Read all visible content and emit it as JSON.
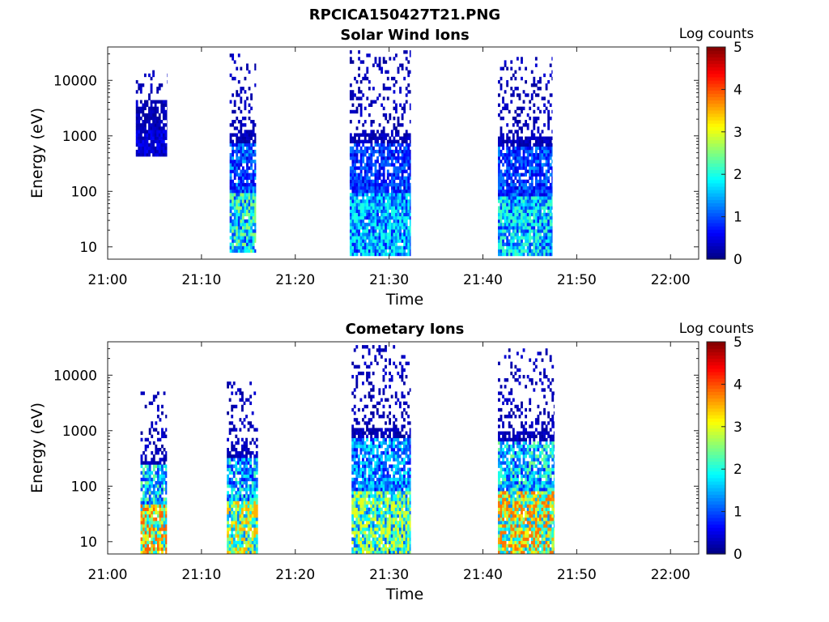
{
  "figure_title": "RPCICA150427T21.PNG",
  "colorbar": {
    "label": "Log counts",
    "ticks": [
      "0",
      "1",
      "2",
      "3",
      "4",
      "5"
    ],
    "range": [
      0,
      5
    ],
    "colormap": "jet"
  },
  "chart_data": [
    {
      "type": "heatmap",
      "title": "Solar Wind Ions",
      "xlabel": "Time",
      "ylabel": "Energy (eV)",
      "x_ticks": [
        "21:00",
        "21:10",
        "21:20",
        "21:30",
        "21:40",
        "21:50",
        "22:00"
      ],
      "xlim_minutes": [
        0,
        63
      ],
      "y_ticks": [
        "10",
        "100",
        "1000",
        "10000"
      ],
      "ylim_eV": [
        6,
        40000
      ],
      "y_scale": "log",
      "bursts": [
        {
          "start_min": 3.0,
          "end_min": 6.3,
          "emin_eV": 400,
          "emax_eV": 20000,
          "low_max": 0.55,
          "peak": 0.8,
          "fill": 0.3
        },
        {
          "start_min": 13.0,
          "end_min": 15.8,
          "emin_eV": 8,
          "emax_eV": 30000,
          "low_max": 2.3,
          "peak": 2.6,
          "fill": 0.6
        },
        {
          "start_min": 25.8,
          "end_min": 32.3,
          "emin_eV": 7,
          "emax_eV": 35000,
          "low_max": 1.9,
          "peak": 2.0,
          "fill": 0.55
        },
        {
          "start_min": 41.6,
          "end_min": 47.4,
          "emin_eV": 7,
          "emax_eV": 25000,
          "low_max": 2.1,
          "peak": 2.2,
          "fill": 0.55
        }
      ]
    },
    {
      "type": "heatmap",
      "title": "Cometary Ions",
      "xlabel": "Time",
      "ylabel": "Energy (eV)",
      "x_ticks": [
        "21:00",
        "21:10",
        "21:20",
        "21:30",
        "21:40",
        "21:50",
        "22:00"
      ],
      "xlim_minutes": [
        0,
        63
      ],
      "y_ticks": [
        "10",
        "100",
        "1000",
        "10000"
      ],
      "ylim_eV": [
        6,
        40000
      ],
      "y_scale": "log",
      "bursts": [
        {
          "start_min": 3.5,
          "end_min": 6.3,
          "emin_eV": 6,
          "emax_eV": 5000,
          "low_max": 3.8,
          "peak": 3.9,
          "fill": 0.6
        },
        {
          "start_min": 12.7,
          "end_min": 16.0,
          "emin_eV": 6,
          "emax_eV": 8000,
          "low_max": 3.4,
          "peak": 3.5,
          "fill": 0.6
        },
        {
          "start_min": 26.0,
          "end_min": 32.3,
          "emin_eV": 6,
          "emax_eV": 35000,
          "low_max": 2.9,
          "peak": 3.0,
          "fill": 0.55
        },
        {
          "start_min": 41.6,
          "end_min": 47.6,
          "emin_eV": 6,
          "emax_eV": 30000,
          "low_max": 3.7,
          "peak": 3.8,
          "fill": 0.55
        }
      ]
    }
  ]
}
